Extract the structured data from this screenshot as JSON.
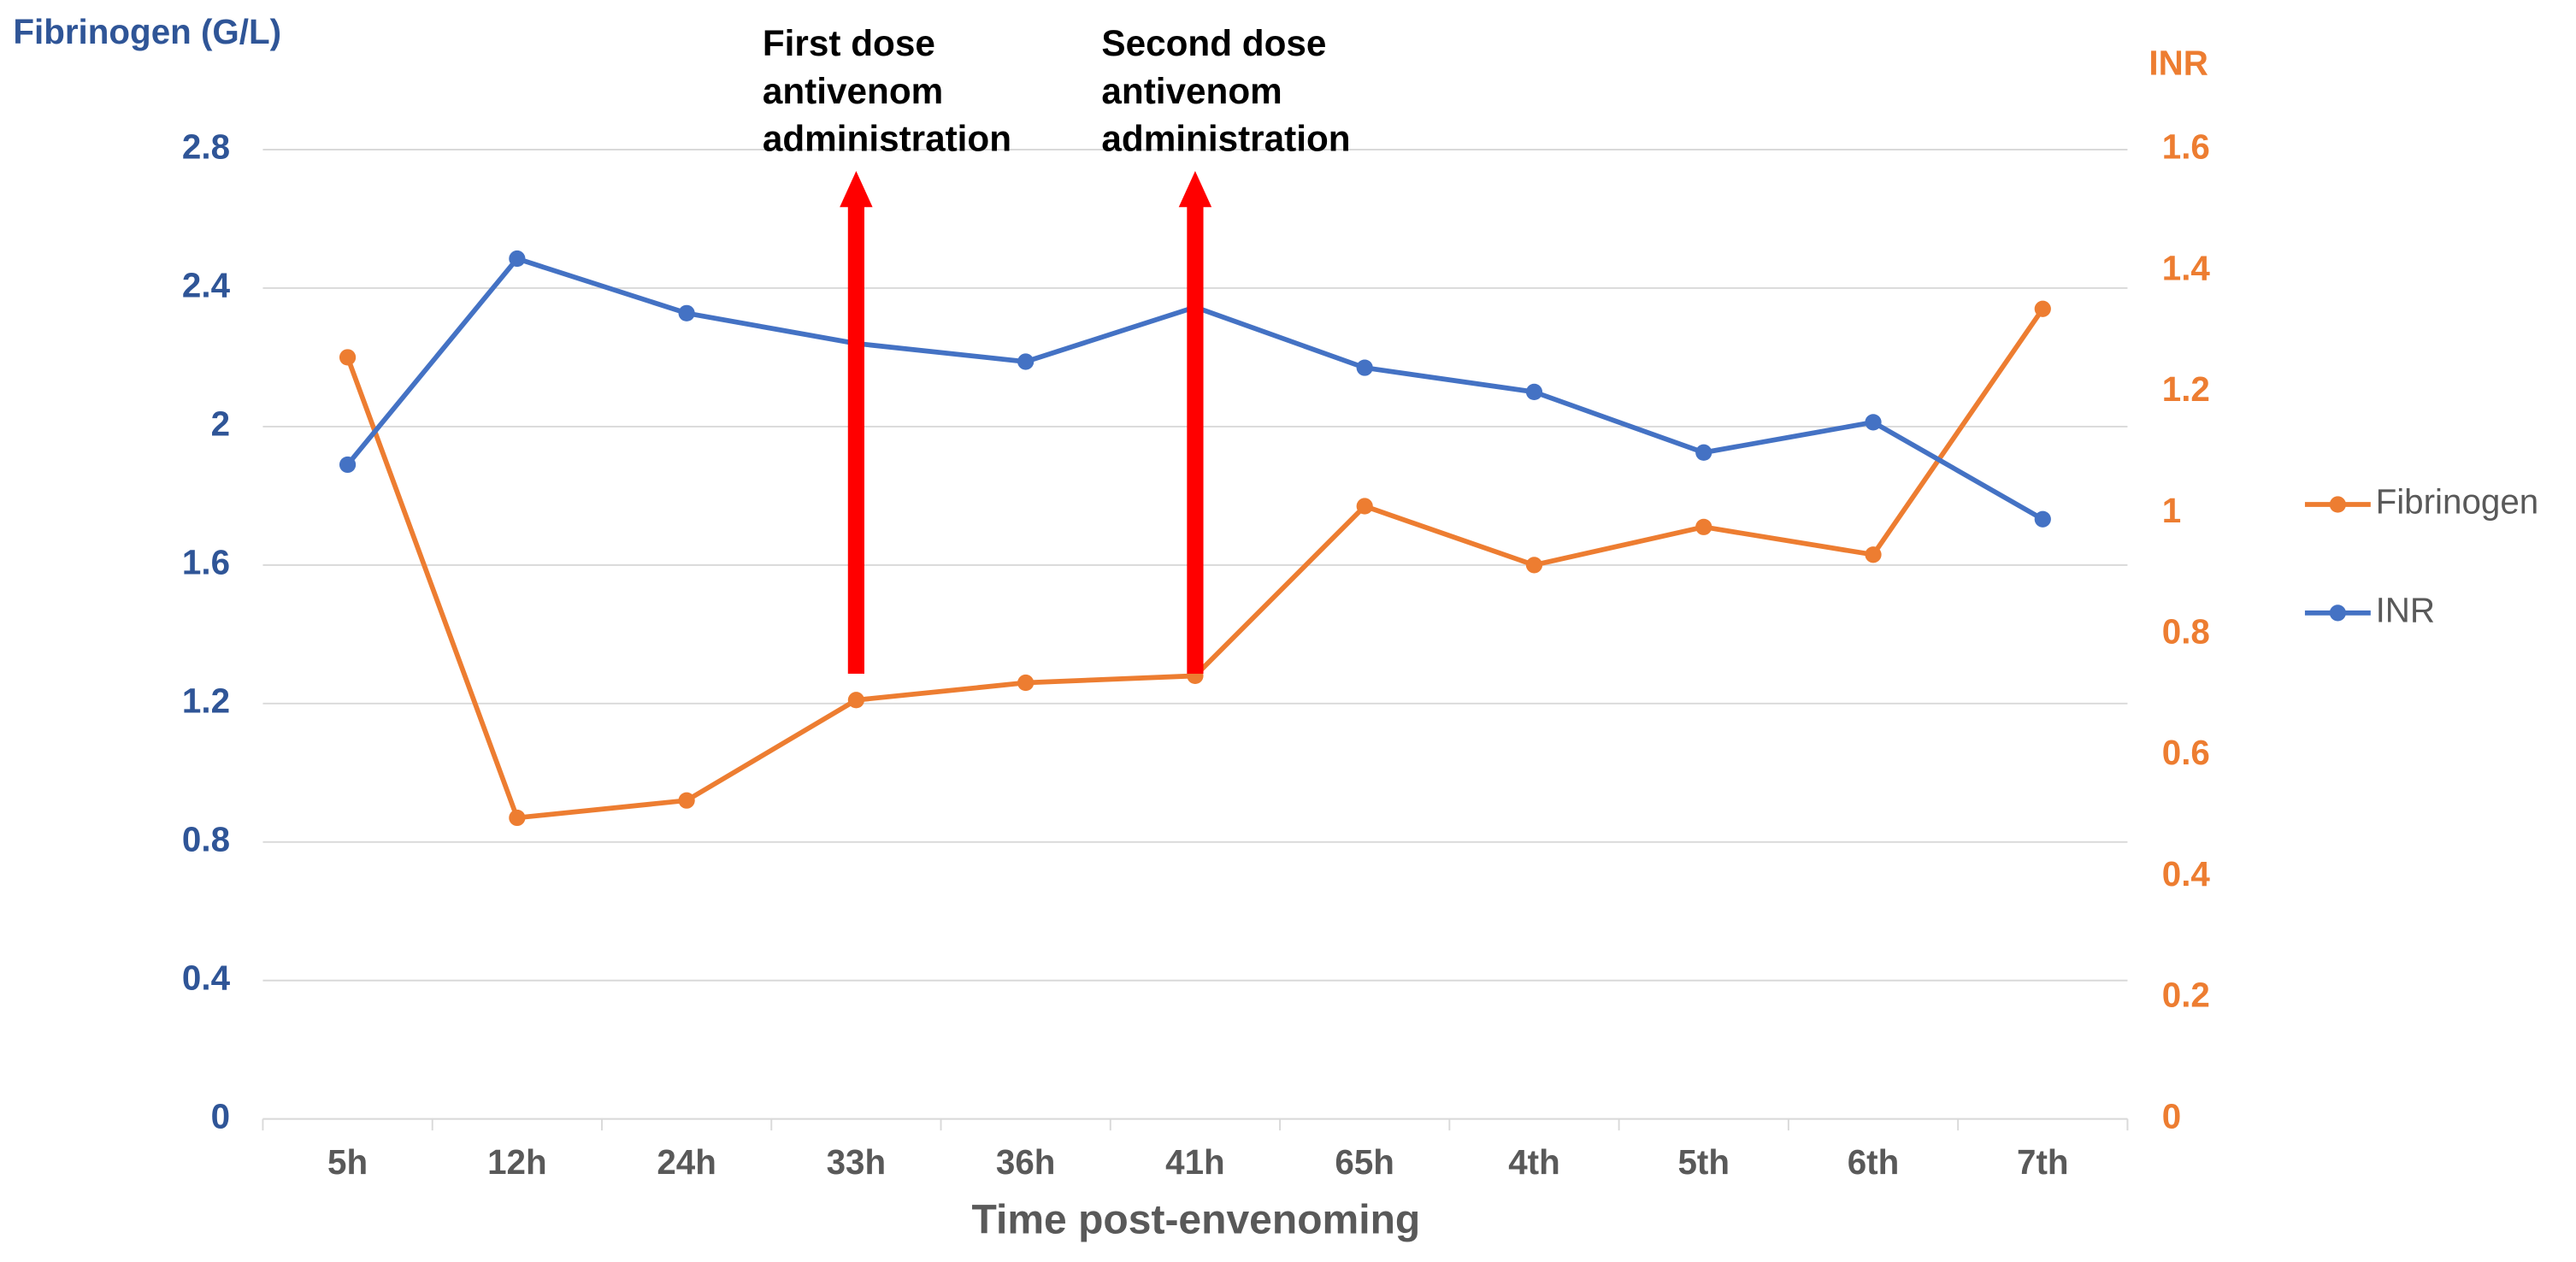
{
  "chart_data": {
    "type": "line",
    "y_label": "Fibrinogen (G/L)",
    "y2_label": "INR",
    "x_label": "Time post-envenoming",
    "categories": [
      "5h",
      "12h",
      "24h",
      "33h",
      "36h",
      "41h",
      "65h",
      "4th",
      "5th",
      "6th",
      "7th"
    ],
    "series": [
      {
        "name": "Fibrinogen",
        "color": "#ed7d31",
        "axis": "y",
        "values": [
          2.2,
          0.87,
          0.92,
          1.21,
          1.26,
          1.28,
          1.77,
          1.6,
          1.71,
          1.63,
          2.34
        ]
      },
      {
        "name": "INR",
        "color": "#4472c4",
        "axis": "y2",
        "values": [
          1.08,
          1.42,
          1.33,
          1.28,
          1.25,
          1.34,
          1.24,
          1.2,
          1.1,
          1.15,
          0.99
        ]
      }
    ],
    "ylim": [
      0,
      2.8
    ],
    "yticks": [
      0,
      0.4,
      0.8,
      1.2,
      1.6,
      2,
      2.4,
      2.8
    ],
    "y2lim": [
      0,
      1.6
    ],
    "y2ticks": [
      0,
      0.2,
      0.4,
      0.6,
      0.8,
      1,
      1.2,
      1.4,
      1.6
    ],
    "y_axis_color": "#2f5597",
    "y2_axis_color": "#ed7d31",
    "grid": true,
    "legend": "right",
    "annotations": [
      {
        "lines": [
          "First dose",
          "antivenom",
          "administration"
        ],
        "x": "33h",
        "color": "#ff0000"
      },
      {
        "lines": [
          "Second dose",
          "antivenom",
          "administration"
        ],
        "x": "41h",
        "color": "#ff0000"
      }
    ]
  }
}
